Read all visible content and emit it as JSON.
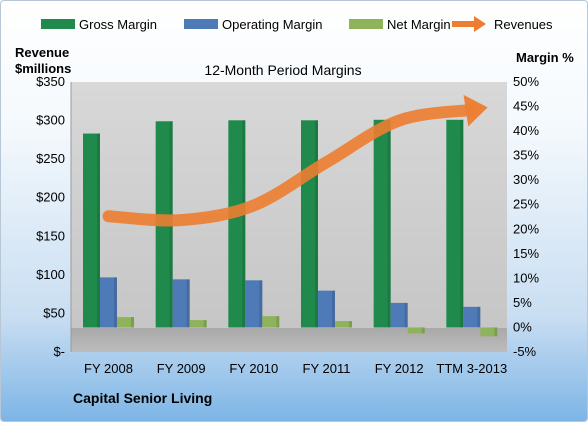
{
  "chart_data": {
    "type": "bar",
    "title": "12-Month Period Margins",
    "left_axis_label": [
      "Revenue",
      "$millions"
    ],
    "right_axis_label": "Margin %",
    "footer": "Capital Senior Living",
    "categories": [
      "FY 2008",
      "FY 2009",
      "FY 2010",
      "FY 2011",
      "FY 2012",
      "TTM 3-2013"
    ],
    "left_ticks": [
      "$350",
      "$300",
      "$250",
      "$200",
      "$150",
      "$100",
      "$50",
      "$-"
    ],
    "right_ticks": [
      "50%",
      "45%",
      "40%",
      "35%",
      "30%",
      "25%",
      "20%",
      "15%",
      "10%",
      "5%",
      "0%",
      "-5%"
    ],
    "ylim_margin": [
      -5,
      50
    ],
    "ylim_revenue": [
      0,
      350
    ],
    "legend_position": "top",
    "series": [
      {
        "name": "Gross Margin",
        "axis": "margin",
        "kind": "bar",
        "color": "#1f8a4c",
        "values": [
          39.5,
          42.0,
          42.2,
          42.2,
          42.3,
          42.3
        ]
      },
      {
        "name": "Operating Margin",
        "axis": "margin",
        "kind": "bar",
        "color": "#4f7ab8",
        "values": [
          10.2,
          9.8,
          9.6,
          7.5,
          5.0,
          4.2
        ]
      },
      {
        "name": "Net Margin",
        "axis": "margin",
        "kind": "bar",
        "color": "#8fb35a",
        "values": [
          2.1,
          1.5,
          2.3,
          1.3,
          -1.2,
          -1.8
        ]
      },
      {
        "name": "Revenues",
        "axis": "revenue",
        "kind": "line",
        "color": "#ed7d31",
        "values": [
          176,
          171,
          190,
          246,
          300,
          314
        ]
      }
    ]
  }
}
